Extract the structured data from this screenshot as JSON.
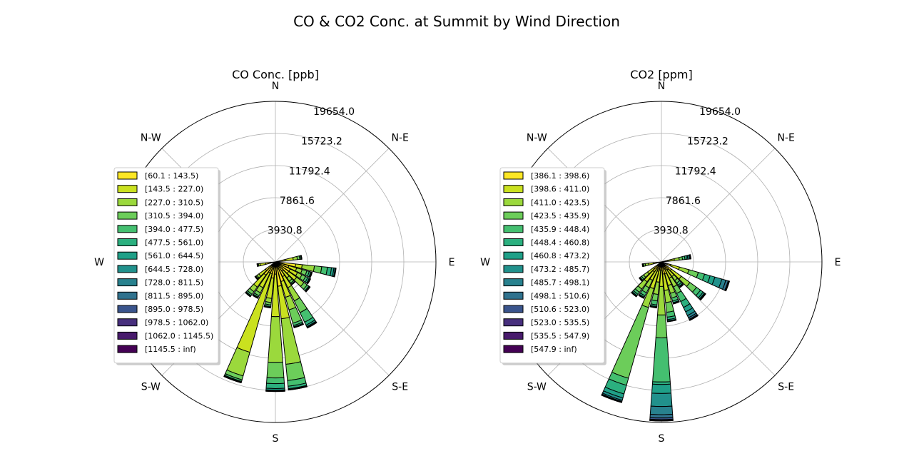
{
  "title": "CO & CO2 Conc. at Summit by Wind Direction",
  "chart_data": [
    {
      "type": "windrose",
      "title": "CO Conc. [ppb]",
      "direction_labels": [
        "N",
        "N-E",
        "E",
        "S-E",
        "S",
        "S-W",
        "W",
        "N-W"
      ],
      "radial_ticks": [
        "3930.8",
        "7861.6",
        "11792.4",
        "15723.2",
        "19654.0"
      ],
      "radial_tick_values": [
        3930.8,
        7861.6,
        11792.4,
        15723.2,
        19654.0
      ],
      "rmax": 19654.0,
      "bins": [
        "[60.1 : 143.5)",
        "[143.5 : 227.0)",
        "[227.0 : 310.5)",
        "[310.5 : 394.0)",
        "[394.0 : 477.5)",
        "[477.5 : 561.0)",
        "[561.0 : 644.5)",
        "[644.5 : 728.0)",
        "[728.0 : 811.5)",
        "[811.5 : 895.0)",
        "[895.0 : 978.5)",
        "[978.5 : 1062.0)",
        "[1062.0 : 1145.5)",
        "[1145.5 : inf)"
      ],
      "colors": [
        "#fde725",
        "#cae11f",
        "#9bd93c",
        "#6ccd5a",
        "#44bf70",
        "#2bb07f",
        "#1fa088",
        "#21918c",
        "#28818e",
        "#30728e",
        "#3a548c",
        "#472f7d",
        "#481a6c",
        "#440154"
      ],
      "sector_width_deg": 10,
      "sectors": [
        {
          "dir": 70,
          "values": [
            0,
            0,
            0,
            0,
            0,
            0,
            0,
            0,
            0,
            0,
            0,
            0,
            0,
            0
          ]
        },
        {
          "dir": 80,
          "values": [
            1200,
            1000,
            500,
            300,
            150,
            50,
            30,
            20,
            10,
            5,
            0,
            0,
            0,
            0
          ]
        },
        {
          "dir": 100,
          "values": [
            2500,
            800,
            1500,
            900,
            700,
            500,
            300,
            150,
            80,
            40,
            0,
            0,
            0,
            0
          ]
        },
        {
          "dir": 110,
          "values": [
            1700,
            1000,
            700,
            600,
            300,
            200,
            100,
            50,
            30,
            10,
            0,
            0,
            0,
            0
          ]
        },
        {
          "dir": 120,
          "values": [
            2000,
            1000,
            600,
            500,
            300,
            200,
            100,
            50,
            30,
            10,
            0,
            0,
            0,
            0
          ]
        },
        {
          "dir": 130,
          "values": [
            2000,
            1200,
            1100,
            500,
            250,
            100,
            60,
            30,
            10,
            0,
            0,
            0,
            0,
            0
          ]
        },
        {
          "dir": 140,
          "values": [
            1400,
            1000,
            500,
            300,
            150,
            60,
            30,
            10,
            0,
            0,
            0,
            0,
            0,
            0
          ]
        },
        {
          "dir": 150,
          "values": [
            2000,
            1500,
            1800,
            1600,
            1300,
            400,
            200,
            100,
            60,
            30,
            10,
            0,
            0,
            0
          ]
        },
        {
          "dir": 160,
          "values": [
            2500,
            2000,
            1600,
            1700,
            300,
            150,
            80,
            40,
            20,
            0,
            0,
            0,
            0,
            0
          ]
        },
        {
          "dir": 170,
          "values": [
            3000,
            4000,
            5600,
            2000,
            700,
            300,
            100,
            40,
            20,
            10,
            0,
            0,
            0,
            0
          ]
        },
        {
          "dir": 180,
          "values": [
            1500,
            5200,
            5600,
            1900,
            700,
            600,
            200,
            100,
            40,
            20,
            10,
            0,
            0,
            0
          ]
        },
        {
          "dir": 190,
          "values": [
            2000,
            2500,
            500,
            300,
            200,
            100,
            50,
            20,
            0,
            0,
            0,
            0,
            0,
            0
          ]
        },
        {
          "dir": 200,
          "values": [
            1500,
            10000,
            3000,
            500,
            200,
            100,
            50,
            30,
            10,
            0,
            0,
            0,
            0,
            0
          ]
        },
        {
          "dir": 210,
          "values": [
            1500,
            2000,
            700,
            400,
            200,
            100,
            50,
            20,
            0,
            0,
            0,
            0,
            0,
            0
          ]
        },
        {
          "dir": 220,
          "values": [
            2000,
            1800,
            700,
            400,
            200,
            100,
            50,
            20,
            0,
            0,
            0,
            0,
            0,
            0
          ]
        },
        {
          "dir": 230,
          "values": [
            1500,
            1000,
            300,
            150,
            80,
            40,
            20,
            10,
            0,
            0,
            0,
            0,
            0,
            0
          ]
        },
        {
          "dir": 260,
          "values": [
            1200,
            700,
            200,
            100,
            40,
            20,
            10,
            0,
            0,
            0,
            0,
            0,
            0,
            0
          ]
        }
      ]
    },
    {
      "type": "windrose",
      "title": "CO2 [ppm]",
      "direction_labels": [
        "N",
        "N-E",
        "E",
        "S-E",
        "S",
        "S-W",
        "W",
        "N-W"
      ],
      "radial_ticks": [
        "3930.8",
        "7861.6",
        "11792.4",
        "15723.2",
        "19654.0"
      ],
      "radial_tick_values": [
        3930.8,
        7861.6,
        11792.4,
        15723.2,
        19654.0
      ],
      "rmax": 19654.0,
      "bins": [
        "[386.1 : 398.6)",
        "[398.6 : 411.0)",
        "[411.0 : 423.5)",
        "[423.5 : 435.9)",
        "[435.9 : 448.4)",
        "[448.4 : 460.8)",
        "[460.8 : 473.2)",
        "[473.2 : 485.7)",
        "[485.7 : 498.1)",
        "[498.1 : 510.6)",
        "[510.6 : 523.0)",
        "[523.0 : 535.5)",
        "[535.5 : 547.9)",
        "[547.9 : inf)"
      ],
      "colors": [
        "#fde725",
        "#cae11f",
        "#9bd93c",
        "#6ccd5a",
        "#44bf70",
        "#2bb07f",
        "#1fa088",
        "#21918c",
        "#28818e",
        "#30728e",
        "#3a548c",
        "#472f7d",
        "#481a6c",
        "#440154"
      ],
      "sector_width_deg": 10,
      "sectors": [
        {
          "dir": 70,
          "values": [
            0,
            0,
            0,
            0,
            0,
            0,
            0,
            0,
            0,
            0,
            0,
            0,
            0,
            0
          ]
        },
        {
          "dir": 80,
          "values": [
            800,
            800,
            600,
            400,
            300,
            200,
            150,
            200,
            100,
            50,
            30,
            10,
            0,
            0
          ]
        },
        {
          "dir": 110,
          "values": [
            1200,
            1100,
            1200,
            1200,
            800,
            700,
            600,
            900,
            500,
            300,
            100,
            50,
            20,
            0
          ]
        },
        {
          "dir": 130,
          "values": [
            1500,
            1500,
            1300,
            1000,
            600,
            400,
            200,
            100,
            60,
            30,
            10,
            0,
            0,
            0
          ]
        },
        {
          "dir": 140,
          "values": [
            1200,
            1000,
            600,
            400,
            300,
            200,
            100,
            50,
            20,
            0,
            0,
            0,
            0,
            0
          ]
        },
        {
          "dir": 150,
          "values": [
            1000,
            1200,
            1200,
            900,
            1100,
            800,
            600,
            500,
            300,
            200,
            100,
            40,
            20,
            10
          ]
        },
        {
          "dir": 160,
          "values": [
            1500,
            1500,
            1000,
            600,
            400,
            200,
            100,
            50,
            20,
            0,
            0,
            0,
            0,
            0
          ]
        },
        {
          "dir": 170,
          "values": [
            1500,
            2000,
            1500,
            1200,
            600,
            300,
            150,
            80,
            30,
            10,
            0,
            0,
            0,
            0
          ]
        },
        {
          "dir": 180,
          "values": [
            1000,
            2000,
            3500,
            2800,
            5400,
            300,
            1100,
            1600,
            1000,
            400,
            200,
            100,
            50,
            30
          ]
        },
        {
          "dir": 190,
          "values": [
            1000,
            1500,
            1500,
            800,
            500,
            200,
            100,
            50,
            20,
            0,
            0,
            0,
            0,
            0
          ]
        },
        {
          "dir": 200,
          "values": [
            1200,
            2200,
            2400,
            9000,
            900,
            1100,
            500,
            300,
            150,
            80,
            40,
            20,
            10,
            0
          ]
        },
        {
          "dir": 210,
          "values": [
            1000,
            1500,
            1000,
            700,
            400,
            200,
            100,
            50,
            20,
            0,
            0,
            0,
            0,
            0
          ]
        },
        {
          "dir": 220,
          "values": [
            1500,
            1500,
            1100,
            500,
            300,
            200,
            100,
            50,
            20,
            0,
            0,
            0,
            0,
            0
          ]
        },
        {
          "dir": 230,
          "values": [
            1200,
            900,
            600,
            300,
            200,
            100,
            50,
            20,
            0,
            0,
            0,
            0,
            0,
            0
          ]
        },
        {
          "dir": 260,
          "values": [
            1000,
            600,
            400,
            200,
            100,
            50,
            20,
            0,
            0,
            0,
            0,
            0,
            0,
            0
          ]
        }
      ]
    }
  ]
}
